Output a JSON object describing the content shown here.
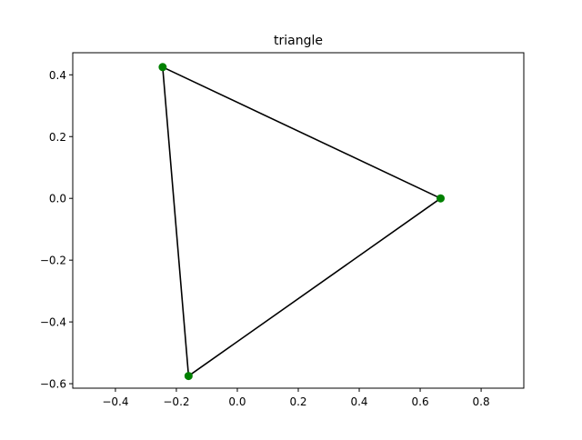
{
  "chart_data": {
    "type": "line",
    "title": "triangle",
    "xlabel": "",
    "ylabel": "",
    "xlim": [
      -0.54,
      0.94
    ],
    "ylim": [
      -0.6145,
      0.4715
    ],
    "xticks": [
      -0.4,
      -0.2,
      0.0,
      0.2,
      0.4,
      0.6,
      0.8
    ],
    "xtick_labels": [
      "−0.4",
      "−0.2",
      "0.0",
      "0.2",
      "0.4",
      "0.6",
      "0.8"
    ],
    "yticks": [
      0.4,
      0.2,
      0.0,
      -0.2,
      -0.4,
      -0.6
    ],
    "ytick_labels": [
      "0.4",
      "0.2",
      "0.0",
      "−0.2",
      "−0.4",
      "−0.6"
    ],
    "grid": false,
    "series": [
      {
        "closed": true,
        "line_color": "#000000",
        "marker_color": "#008000",
        "points": [
          {
            "x": 0.667,
            "y": 0.0
          },
          {
            "x": -0.245,
            "y": 0.425
          },
          {
            "x": -0.16,
            "y": -0.575
          }
        ]
      }
    ]
  }
}
